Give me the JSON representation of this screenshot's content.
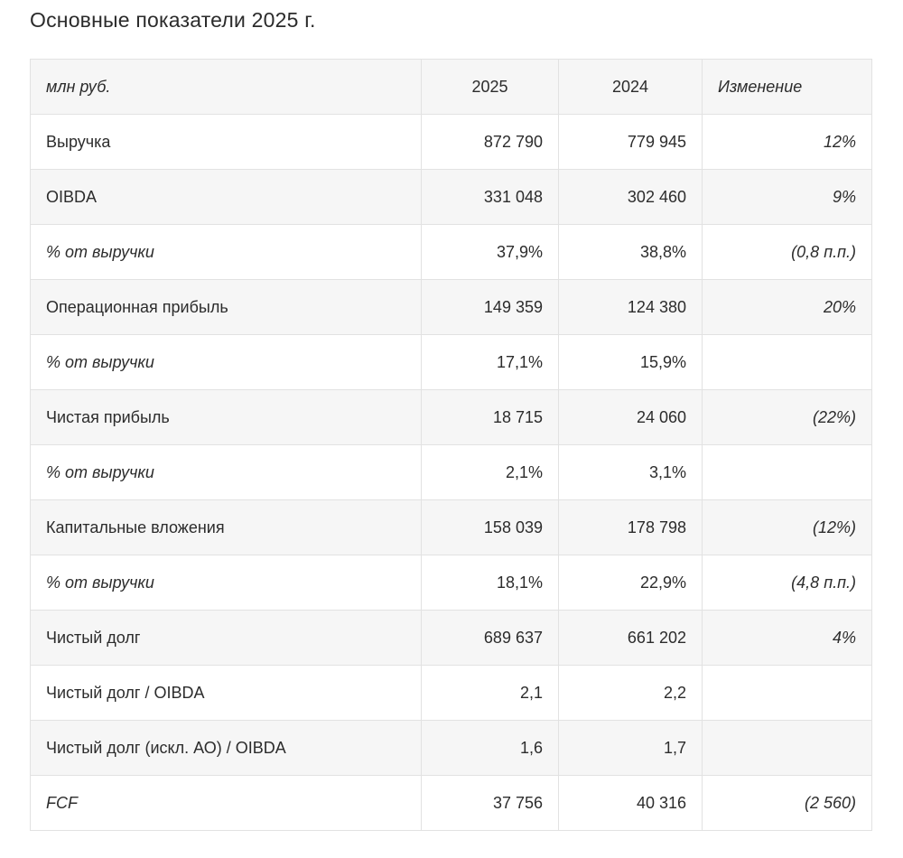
{
  "page": {
    "title": "Основные показатели 2025 г."
  },
  "colors": {
    "zebra_row_background": "#f6f6f6",
    "table_border": "#e2e2e2",
    "text": "#2c2c2c",
    "page_background": "#ffffff"
  },
  "table": {
    "headers": [
      {
        "key": "metric",
        "label": "млн руб.",
        "italic": true,
        "align": "left"
      },
      {
        "key": "2025",
        "label": "2025",
        "italic": false,
        "align": "center"
      },
      {
        "key": "2024",
        "label": "2024",
        "italic": false,
        "align": "center"
      },
      {
        "key": "change",
        "label": "Изменение",
        "italic": true,
        "align": "left"
      }
    ],
    "rows": [
      {
        "label": "Выручка",
        "label_italic": false,
        "v2025": "872 790",
        "v2024": "779 945",
        "change": "12%"
      },
      {
        "label": "OIBDA",
        "label_italic": false,
        "v2025": "331 048",
        "v2024": "302 460",
        "change": "9%"
      },
      {
        "label": "% от выручки",
        "label_italic": true,
        "v2025": "37,9%",
        "v2024": "38,8%",
        "change": "(0,8 п.п.)"
      },
      {
        "label": "Операционная прибыль",
        "label_italic": false,
        "v2025": "149 359",
        "v2024": "124 380",
        "change": "20%"
      },
      {
        "label": "% от выручки",
        "label_italic": true,
        "v2025": "17,1%",
        "v2024": "15,9%",
        "change": ""
      },
      {
        "label": "Чистая прибыль",
        "label_italic": false,
        "v2025": "18 715",
        "v2024": "24 060",
        "change": "(22%)"
      },
      {
        "label": "% от выручки",
        "label_italic": true,
        "v2025": "2,1%",
        "v2024": "3,1%",
        "change": ""
      },
      {
        "label": "Капитальные вложения",
        "label_italic": false,
        "v2025": "158 039",
        "v2024": "178 798",
        "change": "(12%)"
      },
      {
        "label": "% от выручки",
        "label_italic": true,
        "v2025": "18,1%",
        "v2024": "22,9%",
        "change": "(4,8 п.п.)"
      },
      {
        "label": "Чистый долг",
        "label_italic": false,
        "v2025": "689 637",
        "v2024": "661 202",
        "change": "4%"
      },
      {
        "label": "Чистый долг / OIBDA",
        "label_italic": false,
        "v2025": "2,1",
        "v2024": "2,2",
        "change": ""
      },
      {
        "label": "Чистый долг (искл. АО) / OIBDA",
        "label_italic": false,
        "v2025": "1,6",
        "v2024": "1,7",
        "change": ""
      },
      {
        "label": "FCF",
        "label_italic": true,
        "v2025": "37 756",
        "v2024": "40 316",
        "change": "(2 560)"
      }
    ]
  }
}
